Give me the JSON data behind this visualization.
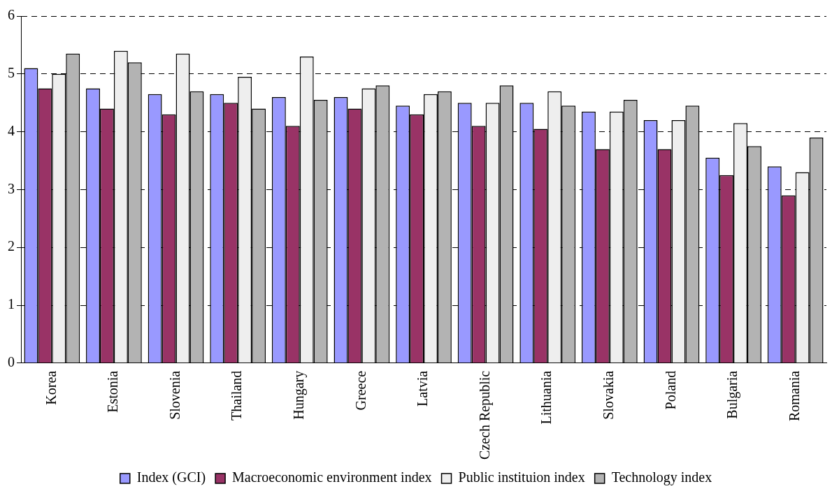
{
  "chart_data": {
    "type": "bar",
    "categories": [
      "Korea",
      "Estonia",
      "Slovenia",
      "Thailand",
      "Hungary",
      "Greece",
      "Latvia",
      "Czech Republic",
      "Lithuania",
      "Slovakia",
      "Poland",
      "Bulgaria",
      "Romania"
    ],
    "series": [
      {
        "name": "Index (GCI)",
        "color": "#9999ff",
        "values": [
          5.1,
          4.75,
          4.65,
          4.65,
          4.6,
          4.6,
          4.45,
          4.5,
          4.5,
          4.35,
          4.2,
          3.55,
          3.4
        ]
      },
      {
        "name": "Macroeconomic environment index",
        "color": "#993366",
        "values": [
          4.75,
          4.4,
          4.3,
          4.5,
          4.1,
          4.4,
          4.3,
          4.1,
          4.05,
          3.7,
          3.7,
          3.25,
          2.9
        ]
      },
      {
        "name": "Public instituion index",
        "color": "#eeeeee",
        "values": [
          5.0,
          5.4,
          5.35,
          4.95,
          5.3,
          4.75,
          4.65,
          4.5,
          4.7,
          4.35,
          4.2,
          4.15,
          3.3
        ]
      },
      {
        "name": "Technology index",
        "color": "#b3b3b3",
        "values": [
          5.35,
          5.2,
          4.7,
          4.4,
          4.55,
          4.8,
          4.7,
          4.8,
          4.45,
          4.55,
          4.45,
          3.75,
          3.9
        ]
      }
    ],
    "ylim": [
      0,
      6
    ],
    "yticks": [
      0,
      1,
      2,
      3,
      4,
      5,
      6
    ],
    "grid": "y",
    "legend": "bottom"
  }
}
